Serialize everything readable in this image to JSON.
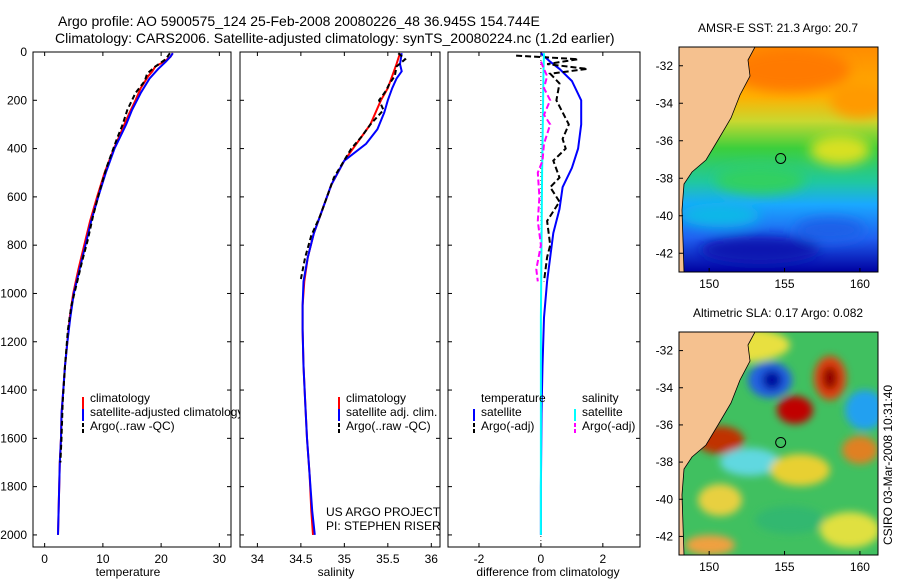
{
  "header": {
    "line1": "Argo profile: AO 5900575_124 25-Feb-2008 20080226_48 36.945S 154.744E",
    "line2": "Climatology: CARS2006. Satellite-adjusted climatology: synTS_20080224.nc (1.2d earlier)"
  },
  "footer": {
    "project": "US ARGO PROJECT",
    "pi": "PI: STEPHEN RISER",
    "credit": "CSIRO 03-Mar-2008 10:31:40"
  },
  "colors": {
    "climatology": "#ff0000",
    "satellite": "#0000ff",
    "argo": "#000000",
    "salinity_satellite": "#00ffff",
    "salinity_argo": "#ff00ff",
    "land": "#f5c18f"
  },
  "chart_data": [
    {
      "type": "line",
      "name": "temperature-profile",
      "xlabel": "temperature",
      "ylabel": "",
      "xlim": [
        -2,
        32
      ],
      "ylim": [
        2050,
        0
      ],
      "xticks": [
        0,
        10,
        20,
        30
      ],
      "yticks": [
        0,
        200,
        400,
        600,
        800,
        1000,
        1200,
        1400,
        1600,
        1800,
        2000
      ],
      "legend": [
        "climatology",
        "satellite-adjusted climatology",
        "Argo(..raw -QC)"
      ],
      "series": [
        {
          "name": "climatology",
          "color": "#ff0000",
          "dash": "",
          "points": [
            [
              22.0,
              5
            ],
            [
              21.6,
              20
            ],
            [
              20.5,
              40
            ],
            [
              19.0,
              60
            ],
            [
              18.5,
              80
            ],
            [
              17.8,
              100
            ],
            [
              16.5,
              150
            ],
            [
              15.6,
              200
            ],
            [
              14.6,
              250
            ],
            [
              13.7,
              300
            ],
            [
              12.8,
              350
            ],
            [
              11.9,
              400
            ],
            [
              10.3,
              500
            ],
            [
              9.0,
              600
            ],
            [
              7.8,
              700
            ],
            [
              6.8,
              800
            ],
            [
              5.8,
              900
            ],
            [
              4.9,
              1000
            ],
            [
              4.3,
              1100
            ],
            [
              3.9,
              1200
            ],
            [
              3.5,
              1300
            ],
            [
              3.2,
              1400
            ],
            [
              2.9,
              1500
            ],
            [
              2.8,
              1600
            ],
            [
              2.6,
              1700
            ],
            [
              2.5,
              1800
            ],
            [
              2.4,
              1900
            ],
            [
              2.3,
              2000
            ]
          ]
        },
        {
          "name": "satellite-adjusted climatology",
          "color": "#0000ff",
          "dash": "",
          "points": [
            [
              22.0,
              5
            ],
            [
              21.6,
              20
            ],
            [
              20.8,
              40
            ],
            [
              19.5,
              70
            ],
            [
              18.0,
              110
            ],
            [
              16.5,
              170
            ],
            [
              15.0,
              240
            ],
            [
              14.0,
              300
            ],
            [
              13.0,
              350
            ],
            [
              12.0,
              400
            ],
            [
              10.5,
              500
            ],
            [
              9.2,
              600
            ],
            [
              8.0,
              700
            ],
            [
              7.0,
              800
            ],
            [
              6.0,
              900
            ],
            [
              5.0,
              1000
            ],
            [
              4.4,
              1100
            ],
            [
              3.9,
              1200
            ],
            [
              3.5,
              1300
            ],
            [
              3.2,
              1400
            ],
            [
              2.9,
              1500
            ],
            [
              2.8,
              1600
            ],
            [
              2.6,
              1700
            ],
            [
              2.5,
              1800
            ],
            [
              2.4,
              1900
            ],
            [
              2.3,
              2000
            ]
          ]
        },
        {
          "name": "Argo(..raw -QC)",
          "color": "#000000",
          "dash": "5,3",
          "points": [
            [
              21.5,
              5
            ],
            [
              20.8,
              30
            ],
            [
              19.0,
              60
            ],
            [
              17.6,
              90
            ],
            [
              17.2,
              120
            ],
            [
              15.6,
              170
            ],
            [
              14.2,
              240
            ],
            [
              13.4,
              300
            ],
            [
              12.4,
              360
            ],
            [
              11.5,
              420
            ],
            [
              10.6,
              480
            ],
            [
              9.4,
              580
            ],
            [
              8.3,
              680
            ],
            [
              7.4,
              780
            ],
            [
              6.5,
              860
            ],
            [
              5.5,
              960
            ],
            [
              4.6,
              1050
            ],
            [
              4.0,
              1150
            ],
            [
              3.5,
              1300
            ],
            [
              3.1,
              1450
            ],
            [
              2.9,
              1600
            ],
            [
              2.7,
              1700
            ]
          ]
        }
      ]
    },
    {
      "type": "line",
      "name": "salinity-profile",
      "xlabel": "salinity",
      "xlim": [
        33.8,
        36.1
      ],
      "ylim": [
        2050,
        0
      ],
      "xticks": [
        34,
        34.5,
        35,
        35.5,
        36
      ],
      "legend": [
        "climatology",
        "satellite adj. clim.",
        "Argo(..raw -QC)"
      ],
      "series": [
        {
          "name": "climatology",
          "color": "#ff0000",
          "dash": "",
          "points": [
            [
              35.64,
              5
            ],
            [
              35.6,
              50
            ],
            [
              35.55,
              100
            ],
            [
              35.5,
              150
            ],
            [
              35.42,
              200
            ],
            [
              35.3,
              300
            ],
            [
              35.2,
              350
            ],
            [
              35.1,
              400
            ],
            [
              35.0,
              450
            ],
            [
              34.85,
              550
            ],
            [
              34.75,
              650
            ],
            [
              34.65,
              750
            ],
            [
              34.58,
              850
            ],
            [
              34.54,
              950
            ],
            [
              34.52,
              1050
            ],
            [
              34.52,
              1150
            ],
            [
              34.53,
              1300
            ],
            [
              34.55,
              1450
            ],
            [
              34.57,
              1600
            ],
            [
              34.6,
              1750
            ],
            [
              34.62,
              1900
            ],
            [
              34.64,
              2000
            ]
          ]
        },
        {
          "name": "satellite adj. clim.",
          "color": "#0000ff",
          "dash": "",
          "points": [
            [
              35.66,
              5
            ],
            [
              35.64,
              50
            ],
            [
              35.66,
              80
            ],
            [
              35.6,
              110
            ],
            [
              35.55,
              150
            ],
            [
              35.5,
              200
            ],
            [
              35.46,
              250
            ],
            [
              35.38,
              320
            ],
            [
              35.25,
              380
            ],
            [
              35.0,
              450
            ],
            [
              34.85,
              550
            ],
            [
              34.75,
              650
            ],
            [
              34.65,
              750
            ],
            [
              34.58,
              850
            ],
            [
              34.53,
              950
            ],
            [
              34.52,
              1050
            ],
            [
              34.52,
              1150
            ],
            [
              34.53,
              1300
            ],
            [
              34.55,
              1450
            ],
            [
              34.57,
              1600
            ],
            [
              34.6,
              1750
            ],
            [
              34.63,
              1900
            ],
            [
              34.66,
              2000
            ]
          ]
        },
        {
          "name": "Argo(..raw -QC)",
          "color": "#000000",
          "dash": "5,3",
          "points": [
            [
              35.62,
              5
            ],
            [
              35.7,
              30
            ],
            [
              35.6,
              60
            ],
            [
              35.58,
              100
            ],
            [
              35.52,
              130
            ],
            [
              35.48,
              160
            ],
            [
              35.4,
              200
            ],
            [
              35.45,
              240
            ],
            [
              35.3,
              300
            ],
            [
              35.2,
              350
            ],
            [
              35.08,
              400
            ],
            [
              34.98,
              460
            ],
            [
              34.88,
              520
            ],
            [
              34.8,
              600
            ],
            [
              34.72,
              680
            ],
            [
              34.62,
              760
            ],
            [
              34.55,
              850
            ],
            [
              34.5,
              940
            ]
          ]
        }
      ]
    },
    {
      "type": "line",
      "name": "difference-profile",
      "xlabel": "difference from climatology",
      "xlim": [
        -3,
        3.2
      ],
      "ylim": [
        2050,
        0
      ],
      "xticks": [
        -2,
        0,
        2
      ],
      "legend_temperature": {
        "title": "temperature",
        "items": [
          "satellite",
          "Argo(-adj)"
        ]
      },
      "legend_salinity": {
        "title": "salinity",
        "items": [
          "satellite",
          "Argo(-adj)"
        ]
      },
      "series": [
        {
          "name": "temperature satellite",
          "color": "#0000ff",
          "dash": "",
          "points": [
            [
              0.0,
              5
            ],
            [
              0.3,
              40
            ],
            [
              0.6,
              70
            ],
            [
              1.0,
              120
            ],
            [
              1.3,
              200
            ],
            [
              1.3,
              300
            ],
            [
              1.2,
              400
            ],
            [
              1.0,
              480
            ],
            [
              0.7,
              560
            ],
            [
              0.6,
              650
            ],
            [
              0.4,
              750
            ],
            [
              0.3,
              850
            ],
            [
              0.2,
              950
            ],
            [
              0.1,
              1100
            ],
            [
              0.05,
              1300
            ],
            [
              0.02,
              1500
            ],
            [
              0.0,
              1800
            ],
            [
              0.0,
              2000
            ]
          ]
        },
        {
          "name": "temperature Argo(-adj)",
          "color": "#000000",
          "dash": "6,3",
          "points": [
            [
              -0.8,
              15
            ],
            [
              1.2,
              30
            ],
            [
              0.2,
              50
            ],
            [
              1.5,
              70
            ],
            [
              0.3,
              90
            ],
            [
              0.6,
              130
            ],
            [
              0.5,
              200
            ],
            [
              0.9,
              300
            ],
            [
              0.7,
              360
            ],
            [
              0.8,
              400
            ],
            [
              0.4,
              450
            ],
            [
              0.6,
              520
            ],
            [
              0.3,
              560
            ],
            [
              0.6,
              620
            ],
            [
              0.2,
              700
            ],
            [
              0.3,
              800
            ],
            [
              0.2,
              850
            ],
            [
              0.1,
              950
            ]
          ]
        },
        {
          "name": "salinity satellite",
          "color": "#00ffff",
          "dash": "",
          "points": [
            [
              0.1,
              5
            ],
            [
              0.08,
              100
            ],
            [
              0.06,
              300
            ],
            [
              0.04,
              500
            ],
            [
              0.02,
              800
            ],
            [
              0.0,
              1100
            ],
            [
              0.0,
              1500
            ],
            [
              0.0,
              2000
            ]
          ]
        },
        {
          "name": "salinity Argo(-adj)",
          "color": "#ff00ff",
          "dash": "6,3",
          "points": [
            [
              0.0,
              40
            ],
            [
              0.2,
              100
            ],
            [
              0.1,
              150
            ],
            [
              0.3,
              200
            ],
            [
              0.1,
              260
            ],
            [
              0.3,
              300
            ],
            [
              0.1,
              380
            ],
            [
              0.05,
              450
            ],
            [
              -0.1,
              500
            ],
            [
              -0.05,
              600
            ],
            [
              -0.1,
              700
            ],
            [
              0.0,
              800
            ],
            [
              -0.15,
              900
            ],
            [
              -0.1,
              950
            ]
          ]
        }
      ]
    },
    {
      "type": "heatmap",
      "name": "sst-map",
      "title": "AMSR-E SST: 21.3 Argo: 20.7",
      "xlim": [
        148,
        161.2
      ],
      "ylim": [
        -43,
        -31
      ],
      "xticks": [
        150,
        155,
        160
      ],
      "yticks": [
        -32,
        -34,
        -36,
        -38,
        -40,
        -42
      ],
      "marker": [
        154.744,
        -36.945
      ]
    },
    {
      "type": "heatmap",
      "name": "sla-map",
      "title": "Altimetric SLA: 0.17 Argo: 0.082",
      "xlim": [
        148,
        161.2
      ],
      "ylim": [
        -43,
        -31
      ],
      "xticks": [
        150,
        155,
        160
      ],
      "yticks": [
        -32,
        -34,
        -36,
        -38,
        -40,
        -42
      ],
      "marker": [
        154.744,
        -36.945
      ]
    }
  ]
}
